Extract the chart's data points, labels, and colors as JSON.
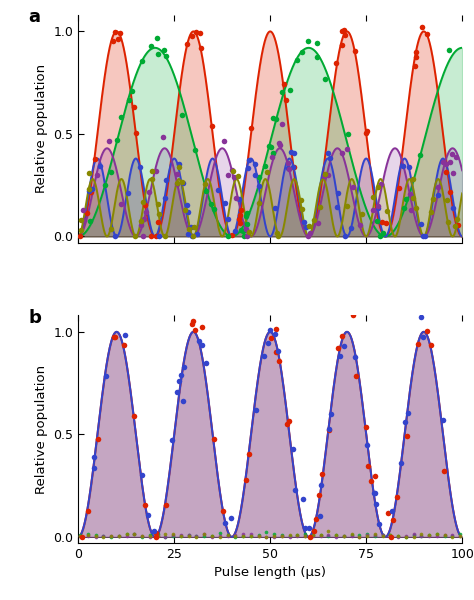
{
  "xlabel": "Pulse length (μs)",
  "ylabel": "Relative population",
  "xlim": [
    0,
    100
  ],
  "ylim": [
    -0.03,
    1.08
  ],
  "xticks": [
    0,
    25,
    50,
    75,
    100
  ],
  "yticks": [
    0.0,
    0.5,
    1.0
  ],
  "panel_a": {
    "curves": [
      {
        "color": "#dd2200",
        "period": 20.0,
        "amplitude": 1.0,
        "phase": 0.0,
        "fill_alpha": 0.25,
        "noise": 0.03,
        "seed": 1
      },
      {
        "color": "#00aa33",
        "period": 40.0,
        "amplitude": 0.92,
        "phase": 0.0,
        "fill_alpha": 0.22,
        "noise": 0.04,
        "seed": 2
      },
      {
        "color": "#3344cc",
        "period": 10.0,
        "amplitude": 0.38,
        "phase": 0.0,
        "fill_alpha": 0.2,
        "noise": 0.04,
        "seed": 3
      },
      {
        "color": "#883399",
        "period": 15.0,
        "amplitude": 0.43,
        "phase": 0.0,
        "fill_alpha": 0.2,
        "noise": 0.05,
        "seed": 4
      },
      {
        "color": "#888800",
        "period": 7.5,
        "amplitude": 0.28,
        "phase": 0.0,
        "fill_alpha": 0.2,
        "noise": 0.04,
        "seed": 5
      }
    ]
  },
  "panel_b": {
    "curves": [
      {
        "color": "#dd2200",
        "period": 20.0,
        "amplitude": 1.0,
        "phase": 0.0,
        "fill_alpha": 0.25,
        "noise": 0.06,
        "seed": 10
      },
      {
        "color": "#3344cc",
        "period": 20.0,
        "amplitude": 1.0,
        "phase": 1.0,
        "fill_alpha": 0.25,
        "noise": 0.06,
        "seed": 20
      }
    ],
    "extra_dots": [
      {
        "color": "#00aa33",
        "seed": 30
      },
      {
        "color": "#883399",
        "seed": 31
      },
      {
        "color": "#888800",
        "seed": 32
      }
    ]
  },
  "dot_size": 16,
  "line_width": 1.4,
  "n_scatter": 48
}
